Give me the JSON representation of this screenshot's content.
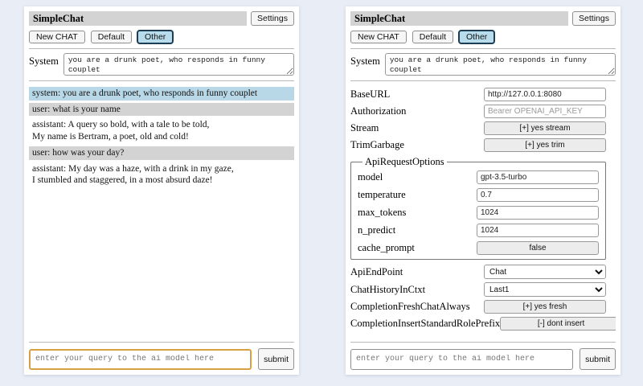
{
  "app": {
    "title": "SimpleChat",
    "settings_button": "Settings",
    "tabs": [
      {
        "label": "New CHAT",
        "selected": false
      },
      {
        "label": "Default",
        "selected": false
      },
      {
        "label": "Other",
        "selected": true
      }
    ],
    "system": {
      "label": "System",
      "value": "you are a drunk poet, who responds in funny couplet"
    },
    "query": {
      "placeholder": "enter your query to the ai model here",
      "submit": "submit"
    }
  },
  "chat": {
    "messages": [
      {
        "role": "system",
        "text": "system: you are a drunk poet, who responds in funny couplet"
      },
      {
        "role": "user",
        "text": "user: what is your name"
      },
      {
        "role": "assistant",
        "text": "assistant: A query so bold, with a tale to be told,\nMy name is Bertram, a poet, old and cold!"
      },
      {
        "role": "user",
        "text": "user: how was your day?"
      },
      {
        "role": "assistant",
        "text": "assistant: My day was a haze, with a drink in my gaze,\nI stumbled and staggered, in a most absurd daze!"
      }
    ]
  },
  "settings": {
    "rows_top": [
      {
        "label": "BaseURL",
        "control": "input",
        "value": "http://127.0.0.1:8080"
      },
      {
        "label": "Authorization",
        "control": "input",
        "placeholder": "Bearer OPENAI_API_KEY"
      },
      {
        "label": "Stream",
        "control": "button",
        "value": "[+] yes stream"
      },
      {
        "label": "TrimGarbage",
        "control": "button",
        "value": "[+] yes trim"
      }
    ],
    "group": {
      "legend": "ApiRequestOptions",
      "rows": [
        {
          "label": "model",
          "control": "input",
          "value": "gpt-3.5-turbo"
        },
        {
          "label": "temperature",
          "control": "input",
          "value": "0.7"
        },
        {
          "label": "max_tokens",
          "control": "input",
          "value": "1024"
        },
        {
          "label": "n_predict",
          "control": "input",
          "value": "1024"
        },
        {
          "label": "cache_prompt",
          "control": "button",
          "value": "false"
        }
      ]
    },
    "rows_bottom": [
      {
        "label": "ApiEndPoint",
        "control": "select",
        "value": "Chat"
      },
      {
        "label": "ChatHistoryInCtxt",
        "control": "select",
        "value": "Last1"
      },
      {
        "label": "CompletionFreshChatAlways",
        "control": "button",
        "value": "[+] yes fresh"
      },
      {
        "label": "CompletionInsertStandardRolePrefix",
        "control": "button",
        "value": "[-] dont insert"
      }
    ]
  },
  "colors": {
    "page_bg": "#e9edf6",
    "panel_bg": "#ffffff",
    "title_bar_bg": "#d3d3d3",
    "system_msg_bg": "#b9d8e7",
    "user_msg_bg": "#d3d3d3",
    "selected_tab_bg": "#b9dcec",
    "selected_tab_border": "#1c3d52",
    "focused_input_border": "#d9a043"
  }
}
